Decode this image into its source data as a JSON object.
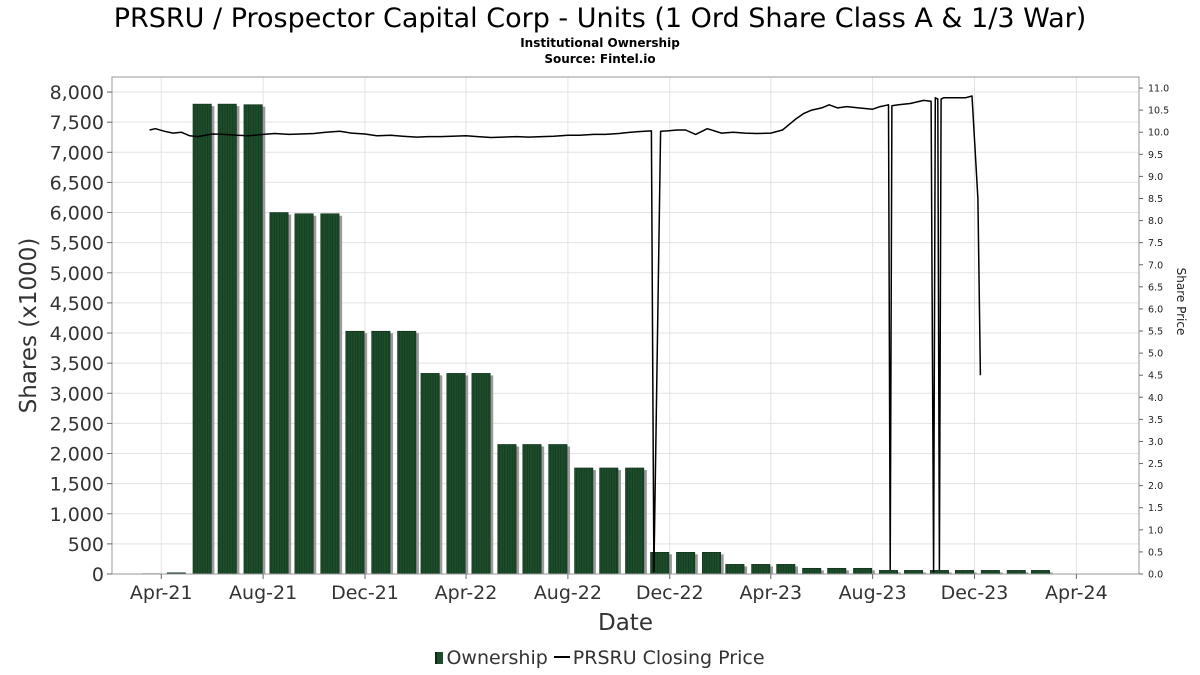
{
  "chart_data": {
    "type": "bar",
    "title": "PRSRU / Prospector Capital Corp - Units (1 Ord Share Class A & 1/3 War)",
    "subtitle": "Institutional Ownership",
    "source": "Source: Fintel.io",
    "xlabel": "Date",
    "ylabel": "Shares (x1000)",
    "y2label": "Share Price",
    "xlim": [
      "2021-02-01",
      "2024-06-15"
    ],
    "ylim": [
      0,
      8250
    ],
    "y2lim": [
      0,
      11.25
    ],
    "x_ticks": [
      {
        "date": "2021-04-01",
        "label": "Apr-21"
      },
      {
        "date": "2021-08-01",
        "label": "Aug-21"
      },
      {
        "date": "2021-12-01",
        "label": "Dec-21"
      },
      {
        "date": "2022-04-01",
        "label": "Apr-22"
      },
      {
        "date": "2022-08-01",
        "label": "Aug-22"
      },
      {
        "date": "2022-12-01",
        "label": "Dec-22"
      },
      {
        "date": "2023-04-01",
        "label": "Apr-23"
      },
      {
        "date": "2023-08-01",
        "label": "Aug-23"
      },
      {
        "date": "2023-12-01",
        "label": "Dec-23"
      },
      {
        "date": "2024-04-01",
        "label": "Apr-24"
      }
    ],
    "y_ticks": [
      "0",
      "500",
      "1,000",
      "1,500",
      "2,000",
      "2,500",
      "3,000",
      "3,500",
      "4,000",
      "4,500",
      "5,000",
      "5,500",
      "6,000",
      "6,500",
      "7,000",
      "7,500",
      "8,000"
    ],
    "y_tick_values": [
      0,
      500,
      1000,
      1500,
      2000,
      2500,
      3000,
      3500,
      4000,
      4500,
      5000,
      5500,
      6000,
      6500,
      7000,
      7500,
      8000
    ],
    "y2_ticks": [
      "0.0",
      "0.5",
      "1.0",
      "1.5",
      "2.0",
      "2.5",
      "3.0",
      "3.5",
      "4.0",
      "4.5",
      "5.0",
      "5.5",
      "6.0",
      "6.5",
      "7.0",
      "7.5",
      "8.0",
      "8.5",
      "9.0",
      "9.5",
      "10.0",
      "10.5",
      "11.0"
    ],
    "y2_tick_values": [
      0,
      0.5,
      1,
      1.5,
      2,
      2.5,
      3,
      3.5,
      4,
      4.5,
      5,
      5.5,
      6,
      6.5,
      7,
      7.5,
      8,
      8.5,
      9,
      9.5,
      10,
      10.5,
      11
    ],
    "grid": true,
    "legend_position": "bottom",
    "series": [
      {
        "name": "Ownership",
        "type": "bar",
        "color": "#1d4d2b",
        "x": [
          "2021-03-31",
          "2021-04-30",
          "2021-05-31",
          "2021-06-30",
          "2021-07-31",
          "2021-08-31",
          "2021-09-30",
          "2021-10-31",
          "2021-11-30",
          "2021-12-31",
          "2022-01-31",
          "2022-02-28",
          "2022-03-31",
          "2022-04-30",
          "2022-05-31",
          "2022-06-30",
          "2022-07-31",
          "2022-08-31",
          "2022-09-30",
          "2022-10-31",
          "2022-11-30",
          "2022-12-31",
          "2023-01-31",
          "2023-02-28",
          "2023-03-31",
          "2023-04-30",
          "2023-05-31",
          "2023-06-30",
          "2023-07-31",
          "2023-08-31",
          "2023-09-30",
          "2023-10-31",
          "2023-11-30",
          "2023-12-31",
          "2024-01-31",
          "2024-02-29"
        ],
        "values": [
          5,
          20,
          7800,
          7800,
          7790,
          6000,
          5980,
          5980,
          4030,
          4030,
          4030,
          3330,
          3330,
          3330,
          2150,
          2150,
          2150,
          1760,
          1760,
          1760,
          360,
          360,
          360,
          160,
          160,
          160,
          95,
          95,
          95,
          60,
          60,
          60,
          60,
          60,
          60,
          60
        ]
      },
      {
        "name": "PRSRU Closing Price",
        "type": "line",
        "color": "#000000",
        "x": [
          "2021-03-18",
          "2021-03-25",
          "2021-04-05",
          "2021-04-15",
          "2021-04-25",
          "2021-05-05",
          "2021-05-15",
          "2021-06-01",
          "2021-06-15",
          "2021-07-01",
          "2021-07-15",
          "2021-08-01",
          "2021-08-15",
          "2021-09-01",
          "2021-09-15",
          "2021-10-01",
          "2021-10-15",
          "2021-11-01",
          "2021-11-15",
          "2021-12-01",
          "2021-12-15",
          "2022-01-01",
          "2022-01-15",
          "2022-02-01",
          "2022-02-15",
          "2022-03-01",
          "2022-03-15",
          "2022-04-01",
          "2022-04-15",
          "2022-05-01",
          "2022-05-15",
          "2022-06-01",
          "2022-06-15",
          "2022-07-01",
          "2022-07-15",
          "2022-08-01",
          "2022-08-15",
          "2022-09-01",
          "2022-09-15",
          "2022-10-01",
          "2022-10-15",
          "2022-11-01",
          "2022-11-09",
          "2022-11-12",
          "2022-11-20",
          "2022-11-28",
          "2022-12-10",
          "2022-12-20",
          "2023-01-01",
          "2023-01-15",
          "2023-02-01",
          "2023-02-15",
          "2023-03-01",
          "2023-03-15",
          "2023-04-01",
          "2023-04-15",
          "2023-05-01",
          "2023-05-10",
          "2023-05-20",
          "2023-06-01",
          "2023-06-10",
          "2023-06-20",
          "2023-07-01",
          "2023-07-15",
          "2023-08-01",
          "2023-08-10",
          "2023-08-20",
          "2023-08-22",
          "2023-08-24",
          "2023-09-01",
          "2023-09-15",
          "2023-10-01",
          "2023-10-10",
          "2023-10-13",
          "2023-10-15",
          "2023-10-18",
          "2023-10-20",
          "2023-10-22",
          "2023-10-25",
          "2023-11-01",
          "2023-11-10",
          "2023-11-20",
          "2023-11-28",
          "2023-12-05",
          "2023-12-08"
        ],
        "values": [
          10.05,
          10.08,
          10.02,
          9.98,
          10.0,
          9.92,
          9.9,
          9.96,
          9.95,
          9.93,
          9.92,
          9.95,
          9.97,
          9.95,
          9.96,
          9.97,
          10.0,
          10.02,
          9.98,
          9.96,
          9.92,
          9.93,
          9.91,
          9.89,
          9.9,
          9.9,
          9.91,
          9.92,
          9.9,
          9.88,
          9.89,
          9.9,
          9.89,
          9.9,
          9.91,
          9.93,
          9.93,
          9.95,
          9.95,
          9.97,
          10.0,
          10.02,
          10.03,
          0.05,
          10.02,
          10.03,
          10.05,
          10.05,
          9.95,
          10.08,
          9.98,
          10.0,
          9.98,
          9.97,
          9.98,
          10.05,
          10.3,
          10.42,
          10.5,
          10.55,
          10.62,
          10.55,
          10.58,
          10.55,
          10.52,
          10.58,
          10.62,
          0.1,
          10.6,
          10.62,
          10.65,
          10.72,
          10.7,
          0.05,
          10.78,
          10.75,
          0.1,
          10.75,
          10.78,
          10.78,
          10.78,
          10.78,
          10.82,
          8.5,
          4.5
        ]
      }
    ]
  },
  "legend": {
    "items": [
      "Ownership",
      "PRSRU Closing Price"
    ]
  }
}
